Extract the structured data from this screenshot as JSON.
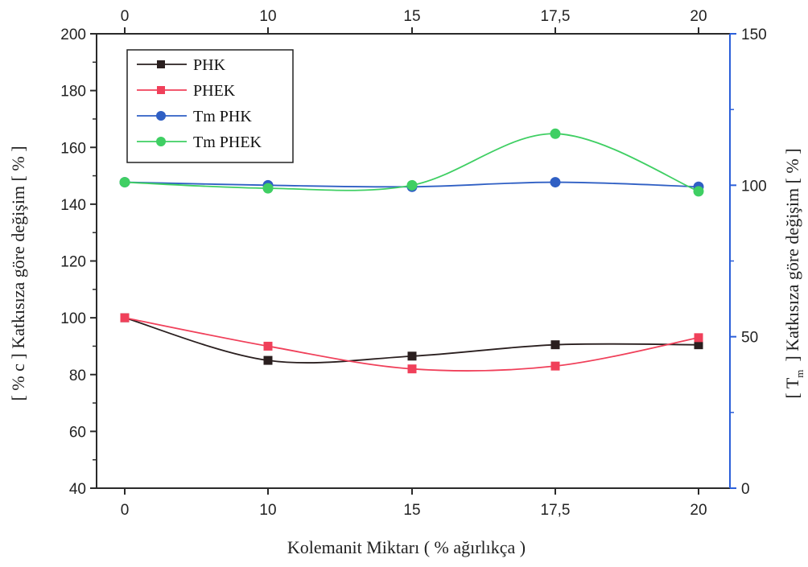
{
  "chart_data": {
    "type": "line",
    "categories": [
      "0",
      "10",
      "15",
      "17,5",
      "20"
    ],
    "top_axis": {
      "ticks": [
        "0",
        "10",
        "15",
        "17,5",
        "20"
      ]
    },
    "xlabel": "Kolemanit Miktarı ( % ağırlıkça )",
    "ylabel_left": "[ % c ] Katkısıza göre değişim [ % ]",
    "ylabel_right": "[ T",
    "ylabel_right_sub": "m",
    "ylabel_right_tail": "] Katkısıza göre değişim [ % ]",
    "ylim_left": [
      40,
      200
    ],
    "yticks_left": [
      "40",
      "60",
      "80",
      "100",
      "120",
      "140",
      "160",
      "180",
      "200"
    ],
    "ylim_right": [
      0,
      150
    ],
    "yticks_right": [
      "0",
      "50",
      "100",
      "150"
    ],
    "right_axis_color": "#2b5fd9",
    "grid": false,
    "legend_position": "top-left",
    "series": [
      {
        "name": "PHK",
        "axis": "left",
        "marker": "square",
        "color": "#2a1f1f",
        "values": [
          100,
          85,
          86.5,
          90.5,
          90.5
        ]
      },
      {
        "name": "PHEK",
        "axis": "left",
        "marker": "square",
        "color": "#f0405a",
        "values": [
          100,
          90,
          82,
          83,
          93
        ]
      },
      {
        "name": "Tm PHK",
        "axis": "right",
        "marker": "circle",
        "color": "#2f5fc4",
        "values": [
          101,
          100,
          99.5,
          101,
          99.5
        ]
      },
      {
        "name": "Tm PHEK",
        "axis": "right",
        "marker": "circle",
        "color": "#3fcf63",
        "values": [
          101,
          99,
          100,
          117,
          98
        ]
      }
    ]
  }
}
